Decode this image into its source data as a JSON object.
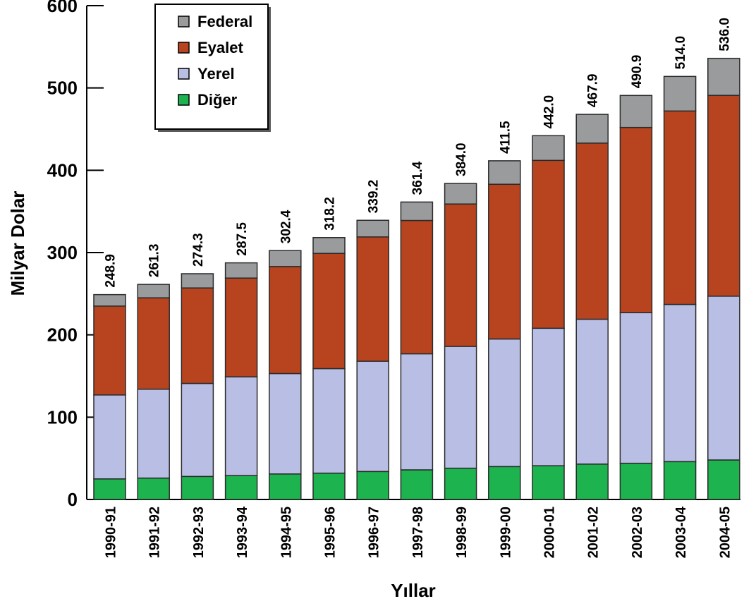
{
  "chart_data": {
    "type": "bar",
    "stacked": true,
    "xlabel": "Yıllar",
    "ylabel": "Milyar Dolar",
    "ylim": [
      0,
      600
    ],
    "yticks": [
      0,
      100,
      200,
      300,
      400,
      500,
      600
    ],
    "grid": false,
    "legend_position": "top-left",
    "categories": [
      "1990-91",
      "1991-92",
      "1992-93",
      "1993-94",
      "1994-95",
      "1995-96",
      "1996-97",
      "1997-98",
      "1998-99",
      "1999-00",
      "2000-01",
      "2001-02",
      "2002-03",
      "2003-04",
      "2004-05"
    ],
    "series": [
      {
        "name": "Diğer",
        "color": "#1db34f",
        "values": [
          25,
          26,
          28,
          29,
          31,
          32,
          34,
          36,
          38,
          40,
          41,
          43,
          44,
          46,
          48
        ]
      },
      {
        "name": "Yerel",
        "color": "#b9bfe4",
        "values": [
          102,
          108,
          113,
          120,
          122,
          127,
          134,
          141,
          148,
          155,
          167,
          176,
          183,
          191,
          199
        ]
      },
      {
        "name": "Eyalet",
        "color": "#b8441f",
        "values": [
          108,
          111,
          116,
          120,
          130,
          140,
          151,
          162,
          173,
          188,
          204,
          214,
          225,
          235,
          244
        ]
      },
      {
        "name": "Federal",
        "color": "#999b9c",
        "values": [
          13.9,
          16.3,
          17.3,
          18.5,
          19.4,
          19.2,
          20.2,
          22.4,
          25.0,
          28.5,
          30.0,
          34.9,
          38.9,
          42.0,
          45.0
        ]
      }
    ],
    "totals": [
      "248.9",
      "261.3",
      "274.3",
      "287.5",
      "302.4",
      "318.2",
      "339.2",
      "361.4",
      "384.0",
      "411.5",
      "442.0",
      "467.9",
      "490.9",
      "514.0",
      "536.0"
    ],
    "legend_order": [
      "Federal",
      "Eyalet",
      "Yerel",
      "Diğer"
    ]
  }
}
